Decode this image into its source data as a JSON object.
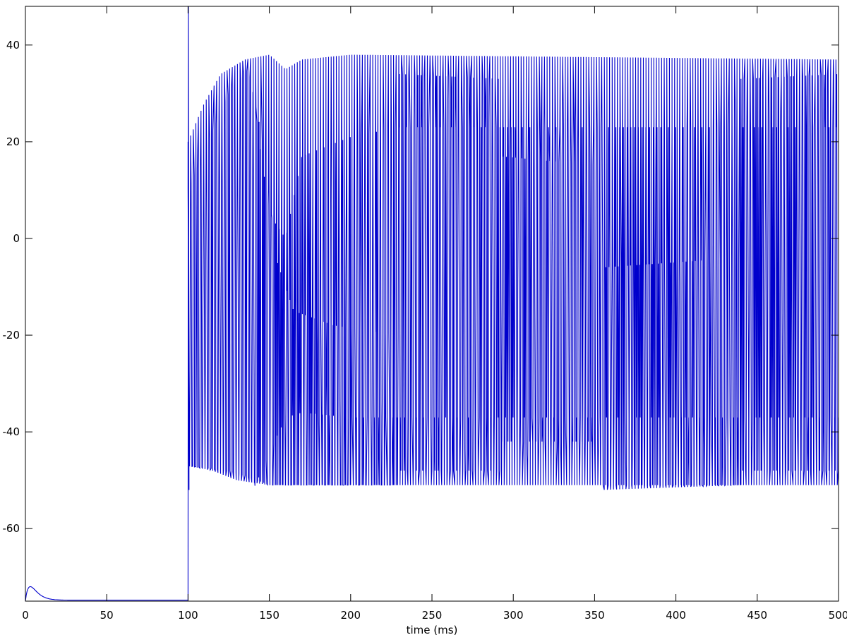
{
  "chart_data": {
    "type": "line",
    "title": "",
    "xlabel": "time (ms)",
    "ylabel": "",
    "xlim": [
      0,
      500
    ],
    "ylim": [
      -75,
      48
    ],
    "x_ticks": [
      0,
      50,
      100,
      150,
      200,
      250,
      300,
      350,
      400,
      450,
      500
    ],
    "y_ticks": [
      -60,
      -40,
      -20,
      0,
      20,
      40
    ],
    "x_tick_labels": [
      "0",
      "50",
      "100",
      "150",
      "200",
      "250",
      "300",
      "350",
      "400",
      "450",
      "500"
    ],
    "y_tick_labels": [
      "-60",
      "-40",
      "-20",
      "0",
      "20",
      "40"
    ],
    "grid": false,
    "legend": "none",
    "colors": {
      "trace": "#0000cc",
      "axes": "#000000",
      "background": "#ffffff"
    },
    "series": [
      {
        "resting": {
          "start_value": -75,
          "bump_peak": -72,
          "bump_time": 3,
          "baseline": -74.8,
          "stimulus_onset": 100,
          "onset_peak": 48
        },
        "envelopes": [
          {
            "segments": [
              {
                "t": [
                  100,
                  500
                ],
                "period": 1.6,
                "upper": [
                  [
                    100,
                    20
                  ],
                  [
                    110,
                    28
                  ],
                  [
                    120,
                    34
                  ],
                  [
                    135,
                    37
                  ],
                  [
                    150,
                    38
                  ],
                  [
                    160,
                    35
                  ],
                  [
                    170,
                    37
                  ],
                  [
                    200,
                    38
                  ],
                  [
                    500,
                    37
                  ]
                ],
                "lower": [
                  [
                    100,
                    -47
                  ],
                  [
                    115,
                    -48
                  ],
                  [
                    130,
                    -50
                  ],
                  [
                    150,
                    -51
                  ],
                  [
                    300,
                    -51
                  ],
                  [
                    500,
                    -51
                  ]
                ]
              }
            ]
          },
          {
            "segments": [
              {
                "t": [
                  100,
                  230
                ],
                "period": 1.9,
                "upper": [
                  [
                    100,
                    10
                  ],
                  [
                    115,
                    22
                  ],
                  [
                    125,
                    30
                  ],
                  [
                    137,
                    35
                  ],
                  [
                    145,
                    22
                  ],
                  [
                    155,
                    -5
                  ],
                  [
                    165,
                    -15
                  ],
                  [
                    190,
                    -18
                  ],
                  [
                    230,
                    -20
                  ]
                ],
                "lower": [
                  [
                    100,
                    -47
                  ],
                  [
                    125,
                    -48
                  ],
                  [
                    135,
                    -49
                  ],
                  [
                    150,
                    -51
                  ],
                  [
                    230,
                    -51
                  ]
                ]
              },
              {
                "t": [
                  230,
                  292
                ],
                "period": 1.9,
                "upper": [
                  [
                    230,
                    34
                  ],
                  [
                    292,
                    33
                  ]
                ],
                "lower": [
                  [
                    230,
                    -48
                  ],
                  [
                    292,
                    -48
                  ]
                ]
              },
              {
                "t": [
                  292,
                  355
                ],
                "period": 1.9,
                "upper": [
                  [
                    292,
                    17
                  ],
                  [
                    355,
                    15
                  ]
                ],
                "lower": [
                  [
                    292,
                    -42
                  ],
                  [
                    355,
                    -42
                  ]
                ]
              },
              {
                "t": [
                  355,
                  440
                ],
                "period": 1.9,
                "upper": [
                  [
                    355,
                    -6
                  ],
                  [
                    440,
                    -4
                  ]
                ],
                "lower": [
                  [
                    355,
                    -52
                  ],
                  [
                    440,
                    -51
                  ]
                ]
              },
              {
                "t": [
                  440,
                  500
                ],
                "period": 1.9,
                "upper": [
                  [
                    440,
                    33
                  ],
                  [
                    500,
                    34
                  ]
                ],
                "lower": [
                  [
                    440,
                    -48
                  ],
                  [
                    500,
                    -48
                  ]
                ]
              }
            ]
          },
          {
            "segments": [
              {
                "t": [
                  140,
                  500
                ],
                "period": 2.3,
                "upper": [
                  [
                    140,
                    30
                  ],
                  [
                    150,
                    5
                  ],
                  [
                    160,
                    0
                  ],
                  [
                    170,
                    17
                  ],
                  [
                    200,
                    21
                  ],
                  [
                    230,
                    23
                  ],
                  [
                    500,
                    23
                  ]
                ],
                "lower": [
                  [
                    140,
                    -52
                  ],
                  [
                    160,
                    -37
                  ],
                  [
                    170,
                    -36
                  ],
                  [
                    200,
                    -37
                  ],
                  [
                    500,
                    -37
                  ]
                ]
              }
            ]
          }
        ]
      }
    ]
  }
}
